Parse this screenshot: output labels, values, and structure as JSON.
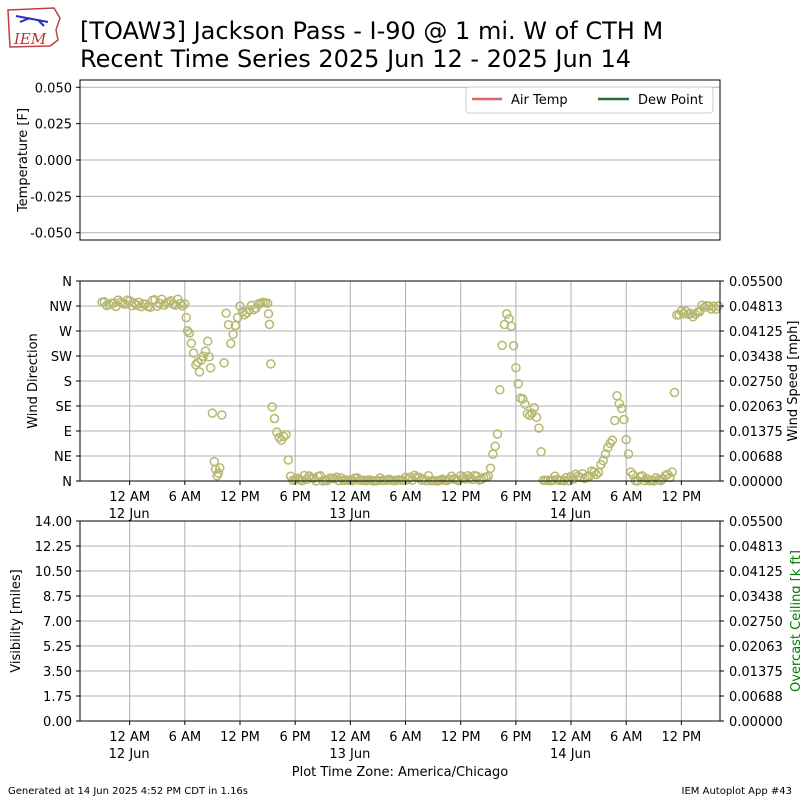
{
  "title_line1": "[TOAW3] Jackson Pass - I-90 @ 1 mi. W of CTH M",
  "title_line2": "Recent Time Series 2025 Jun 12 - 2025 Jun 14",
  "logo_text": "IEM",
  "footer_left": "Generated at 14 Jun 2025 4:52 PM CDT in 1.16s",
  "footer_right": "IEM Autoplot App #43",
  "xlabel": "Plot Time Zone: America/Chicago",
  "colors": {
    "air_temp": "#e06666",
    "dew_point": "#2e6b2e",
    "wind": "#b5b86e",
    "ceiling_label": "#008000",
    "grid": "#b0b0b0"
  },
  "x_ticks": [
    {
      "t": 0,
      "label": "12 AM",
      "sub": "12 Jun"
    },
    {
      "t": 6,
      "label": "6 AM",
      "sub": ""
    },
    {
      "t": 12,
      "label": "12 PM",
      "sub": ""
    },
    {
      "t": 18,
      "label": "6 PM",
      "sub": ""
    },
    {
      "t": 24,
      "label": "12 AM",
      "sub": "13 Jun"
    },
    {
      "t": 30,
      "label": "6 AM",
      "sub": ""
    },
    {
      "t": 36,
      "label": "12 PM",
      "sub": ""
    },
    {
      "t": 42,
      "label": "6 PM",
      "sub": ""
    },
    {
      "t": 48,
      "label": "12 AM",
      "sub": "14 Jun"
    },
    {
      "t": 54,
      "label": "6 AM",
      "sub": ""
    },
    {
      "t": 60,
      "label": "12 PM",
      "sub": ""
    }
  ],
  "chart_data": [
    {
      "type": "line",
      "ylabel": "Temperature [F]",
      "ylim": [
        -0.055,
        0.055
      ],
      "y_ticks": [
        "0.050",
        "0.025",
        "0.000",
        "-0.025",
        "-0.050"
      ],
      "y_tick_values": [
        0.05,
        0.025,
        0,
        -0.025,
        -0.05
      ],
      "series": [
        {
          "name": "Air Temp",
          "values": []
        },
        {
          "name": "Dew Point",
          "values": []
        }
      ],
      "legend": "top-right",
      "grid": true
    },
    {
      "type": "scatter",
      "ylabel": "Wind Direction",
      "ylabel_right": "Wind Speed [mph]",
      "y_ticks": [
        "N",
        "NW",
        "W",
        "SW",
        "S",
        "SE",
        "E",
        "NE",
        "N"
      ],
      "y_tick_values": [
        360,
        315,
        270,
        225,
        180,
        135,
        90,
        45,
        0
      ],
      "y_ticks_right": [
        "0.05500",
        "0.04813",
        "0.04125",
        "0.03438",
        "0.02750",
        "0.02063",
        "0.01375",
        "0.00688",
        "0.00000"
      ],
      "ylim": [
        0,
        360
      ],
      "x_unit": "hours since 12 AM 12 Jun",
      "grid": true,
      "anchors": [
        [
          -3,
          322
        ],
        [
          -1.5,
          320
        ],
        [
          0,
          322
        ],
        [
          1.5,
          318
        ],
        [
          3,
          320
        ],
        [
          4.5,
          322
        ],
        [
          5.5,
          320
        ],
        [
          6,
          318
        ],
        [
          6.3,
          275
        ],
        [
          6.7,
          250
        ],
        [
          7.2,
          215
        ],
        [
          7.6,
          200
        ],
        [
          8,
          225
        ],
        [
          8.5,
          250
        ],
        [
          8.8,
          200
        ],
        [
          9.2,
          40
        ],
        [
          9.5,
          10
        ],
        [
          9.8,
          30
        ],
        [
          10.5,
          300
        ],
        [
          11,
          250
        ],
        [
          11.5,
          280
        ],
        [
          12,
          310
        ],
        [
          12.5,
          300
        ],
        [
          13,
          312
        ],
        [
          14,
          315
        ],
        [
          15,
          315
        ],
        [
          15.2,
          280
        ],
        [
          15.5,
          140
        ],
        [
          16,
          90
        ],
        [
          16.5,
          75
        ],
        [
          17,
          80
        ],
        [
          17.5,
          2
        ],
        [
          18,
          4
        ],
        [
          19,
          3
        ],
        [
          20,
          5
        ],
        [
          22,
          2
        ],
        [
          24,
          0
        ],
        [
          26,
          2
        ],
        [
          28,
          1
        ],
        [
          30,
          3
        ],
        [
          32,
          5
        ],
        [
          34,
          2
        ],
        [
          36,
          4
        ],
        [
          38,
          3
        ],
        [
          39,
          3
        ],
        [
          40,
          80
        ],
        [
          40.5,
          250
        ],
        [
          41,
          300
        ],
        [
          41.5,
          280
        ],
        [
          42,
          200
        ],
        [
          42.5,
          150
        ],
        [
          43,
          135
        ],
        [
          43.5,
          120
        ],
        [
          44,
          125
        ],
        [
          44.5,
          100
        ],
        [
          45,
          0
        ],
        [
          46,
          2
        ],
        [
          47,
          3
        ],
        [
          48,
          5
        ],
        [
          49,
          8
        ],
        [
          50,
          10
        ],
        [
          51,
          20
        ],
        [
          52,
          60
        ],
        [
          52.5,
          80
        ],
        [
          53,
          150
        ],
        [
          53.5,
          130
        ],
        [
          54,
          80
        ],
        [
          54.5,
          20
        ],
        [
          55,
          5
        ],
        [
          58,
          2
        ],
        [
          59,
          10
        ],
        [
          59.5,
          300
        ],
        [
          60,
          310
        ],
        [
          61,
          295
        ],
        [
          62,
          310
        ],
        [
          63,
          312
        ],
        [
          64,
          315
        ]
      ],
      "series": [
        {
          "name": "",
          "values": []
        }
      ]
    },
    {
      "type": "line",
      "ylabel": "Visibility [miles]",
      "ylabel_right": "Overcast Ceiling [k ft]",
      "y_ticks": [
        "14.00",
        "12.25",
        "10.50",
        "8.75",
        "7.00",
        "5.25",
        "3.50",
        "1.75",
        "0.00"
      ],
      "y_tick_values": [
        14,
        12.25,
        10.5,
        8.75,
        7,
        5.25,
        3.5,
        1.75,
        0
      ],
      "y_ticks_right": [
        "0.05500",
        "0.04813",
        "0.04125",
        "0.03438",
        "0.02750",
        "0.02063",
        "0.01375",
        "0.00688",
        "0.00000"
      ],
      "ylim": [
        0,
        14
      ],
      "grid": true,
      "series": []
    }
  ]
}
